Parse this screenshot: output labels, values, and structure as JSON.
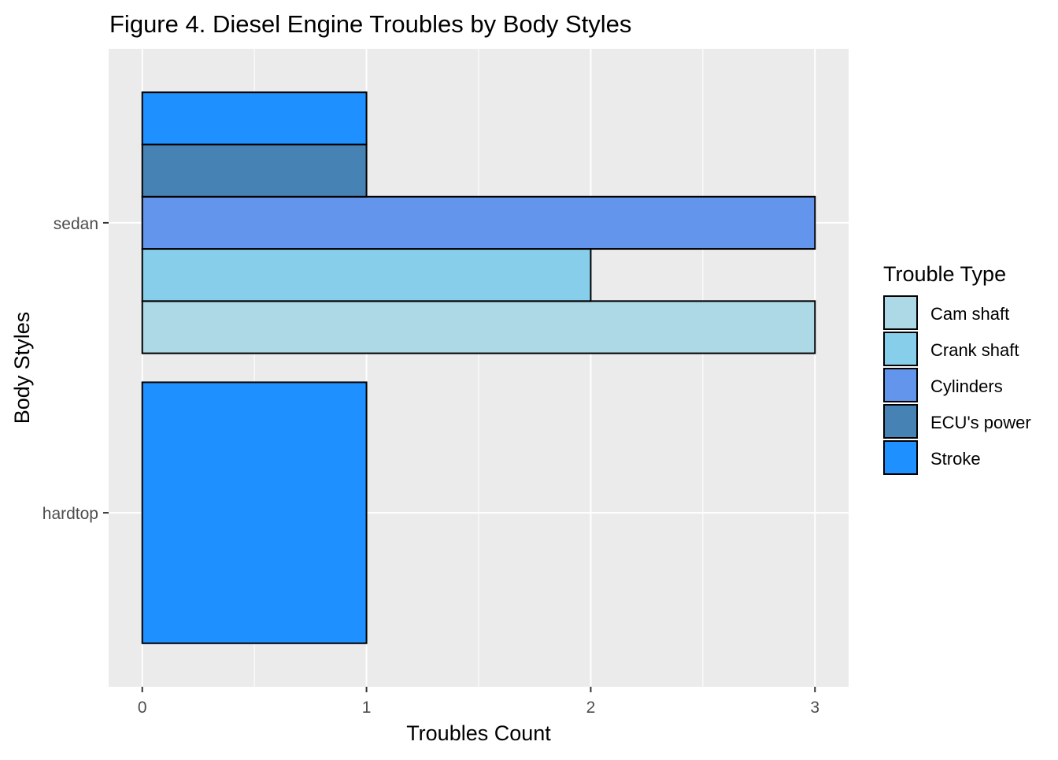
{
  "chart_data": {
    "type": "bar",
    "orientation": "horizontal",
    "title": "Figure 4. Diesel Engine Troubles by Body Styles",
    "xlabel": "Troubles Count",
    "ylabel": "Body Styles",
    "xlim": [
      -0.15,
      3.15
    ],
    "x_ticks": [
      0,
      1,
      2,
      3
    ],
    "x_tick_labels": [
      "0",
      "1",
      "2",
      "3"
    ],
    "categories": [
      "hardtop",
      "sedan"
    ],
    "grid": true,
    "panel_background": "#EBEBEB",
    "grid_color": "#FFFFFF",
    "bar_outline": "#000000",
    "legend": {
      "title": "Trouble Type",
      "position": "right"
    },
    "series": [
      {
        "name": "Cam shaft",
        "color": "#ADD8E6",
        "values": [
          null,
          3
        ]
      },
      {
        "name": "Crank shaft",
        "color": "#87CEEB",
        "values": [
          null,
          2
        ]
      },
      {
        "name": "Cylinders",
        "color": "#6495ED",
        "values": [
          null,
          3
        ]
      },
      {
        "name": "ECU's power",
        "color": "#4682B4",
        "values": [
          null,
          1
        ]
      },
      {
        "name": "Stroke",
        "color": "#1E90FF",
        "values": [
          1,
          1
        ]
      }
    ]
  }
}
